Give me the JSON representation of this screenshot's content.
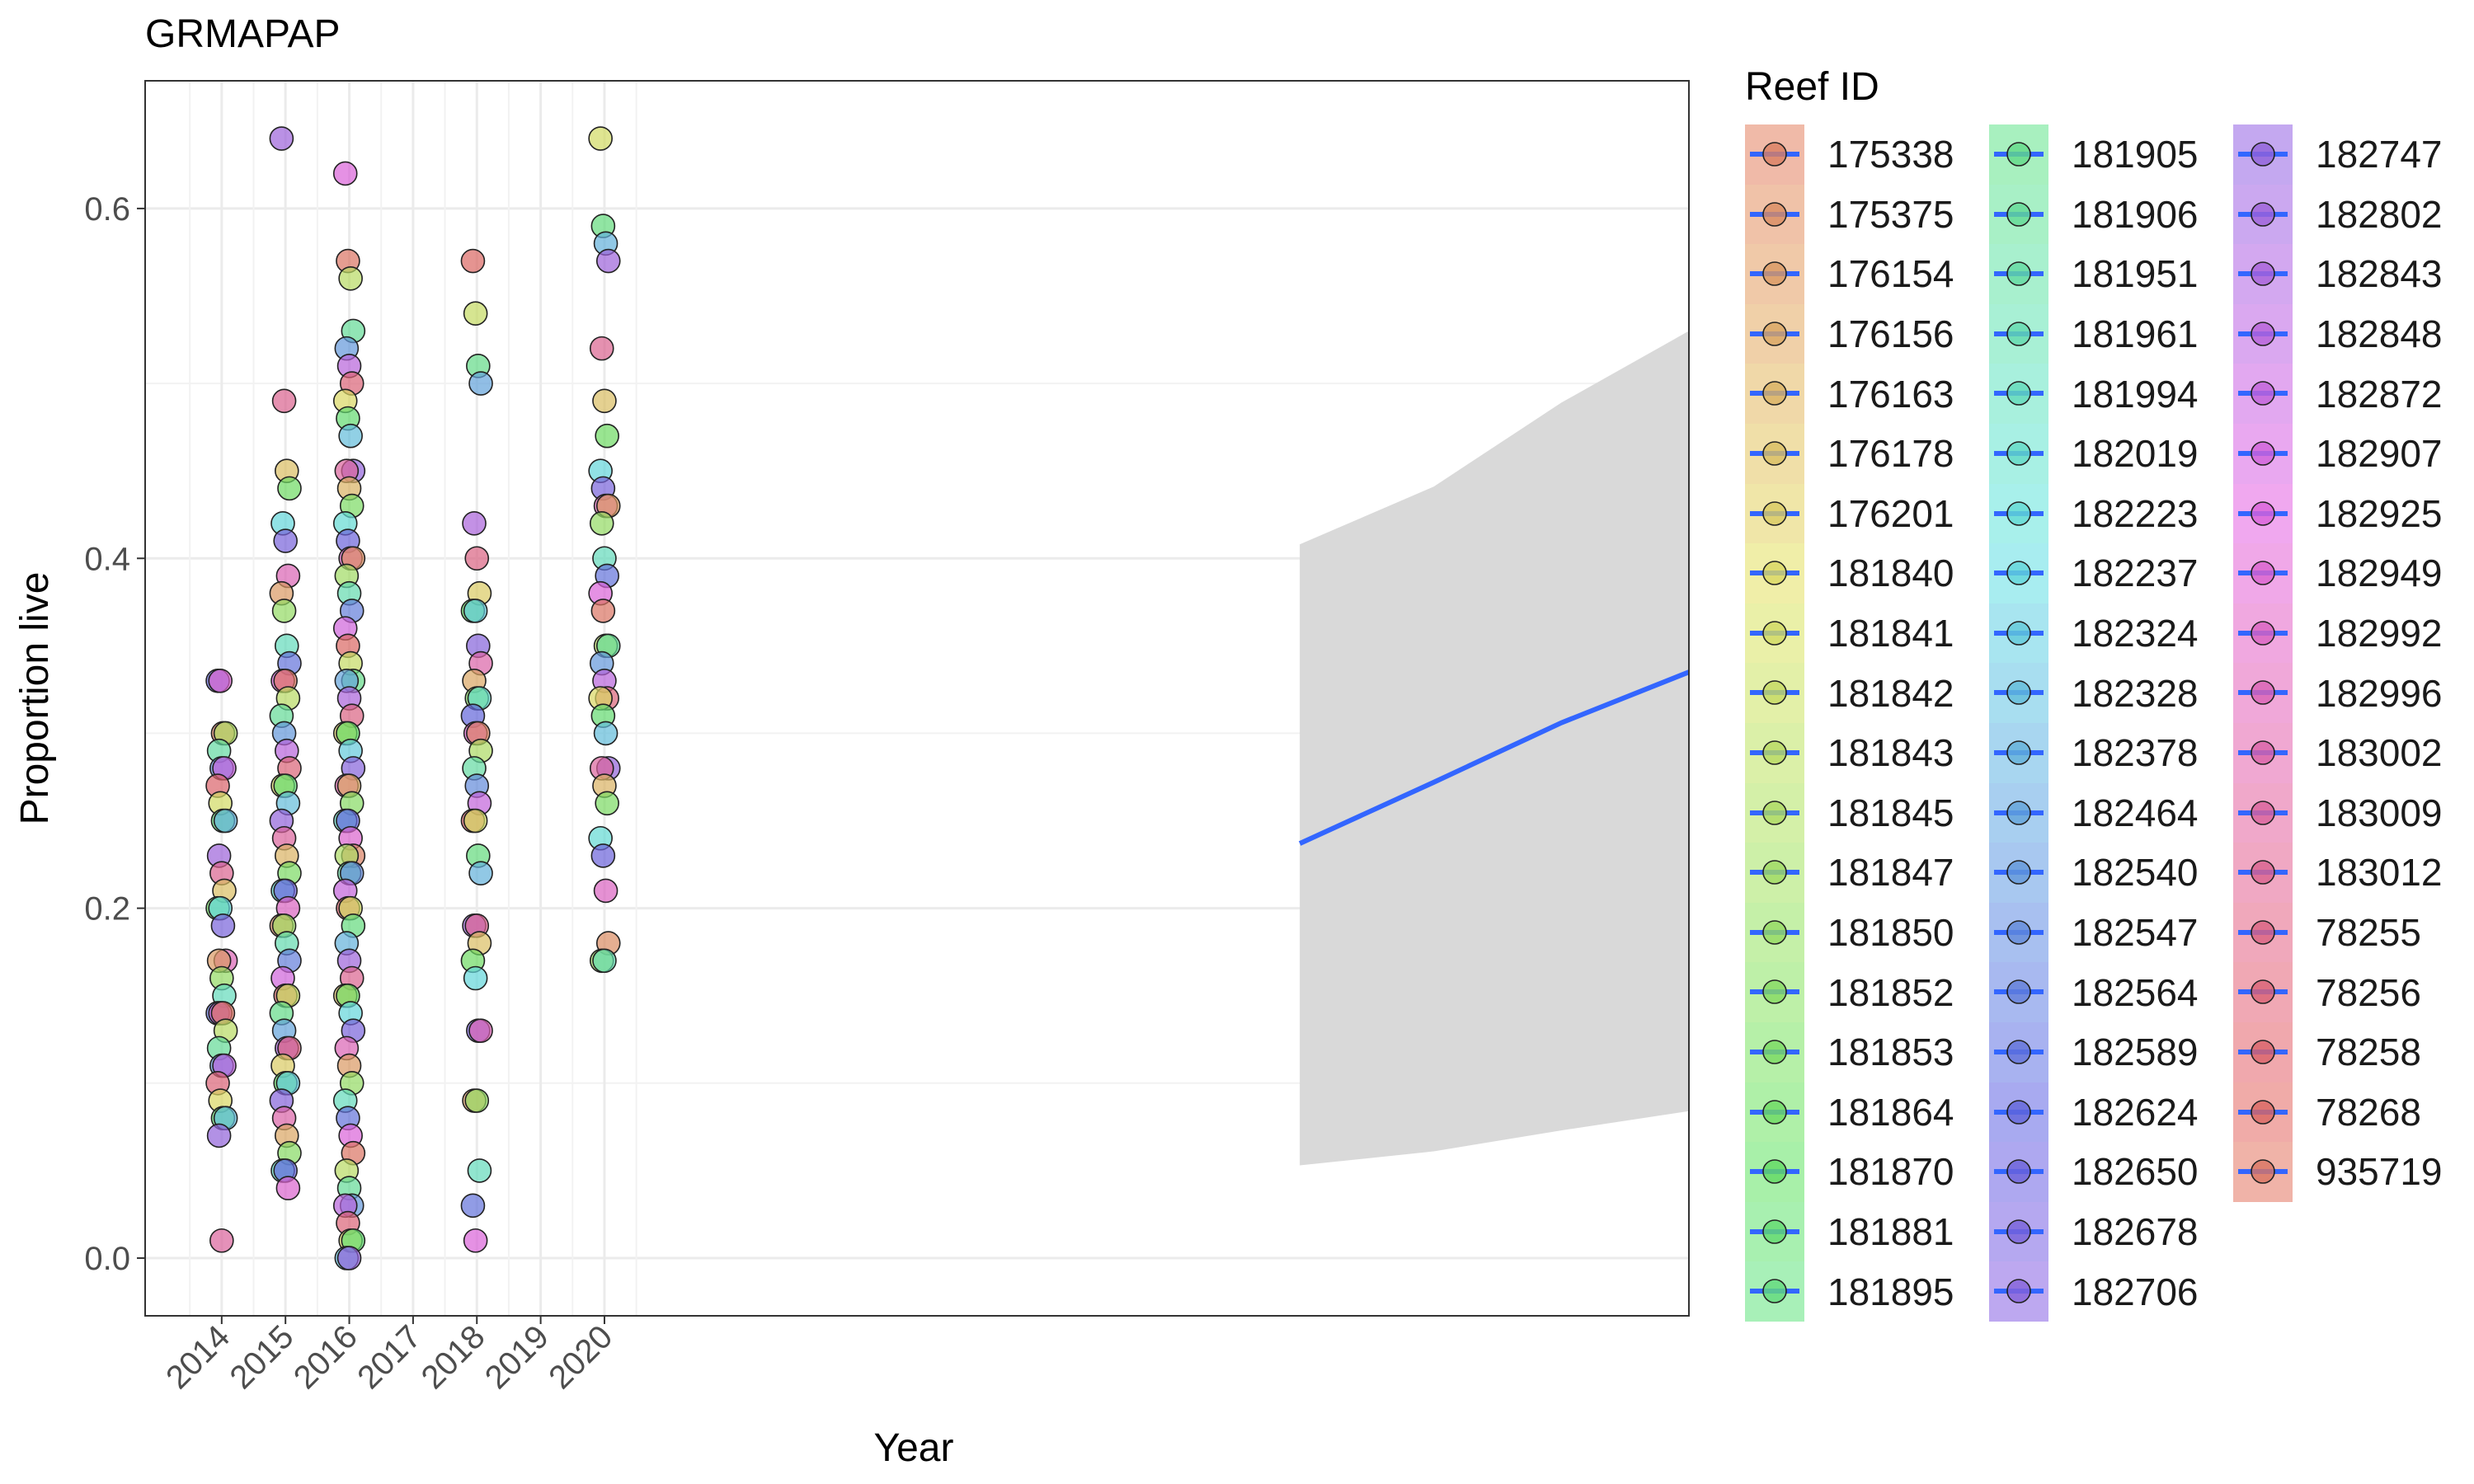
{
  "chart_data": {
    "type": "scatter",
    "title": "GRMAPAP",
    "xlabel": "Year",
    "ylabel": "Proportion live",
    "x_ticks": [
      "2014",
      "2015",
      "2016",
      "2017",
      "2018",
      "2019",
      "2020"
    ],
    "y_ticks": [
      "0.0",
      "0.2",
      "0.4",
      "0.6"
    ],
    "ylim": [
      -0.033,
      0.673
    ],
    "xlim": [
      2012.8,
      2037.0
    ],
    "grid": true,
    "legend_title": "Reef ID",
    "legend_position": "right",
    "reef_ids": [
      "175338",
      "175375",
      "176154",
      "176156",
      "176163",
      "176178",
      "176201",
      "181840",
      "181841",
      "181842",
      "181843",
      "181845",
      "181847",
      "181850",
      "181852",
      "181853",
      "181864",
      "181870",
      "181881",
      "181895",
      "181905",
      "181906",
      "181951",
      "181961",
      "181994",
      "182019",
      "182223",
      "182237",
      "182324",
      "182328",
      "182378",
      "182464",
      "182540",
      "182547",
      "182564",
      "182589",
      "182624",
      "182650",
      "182678",
      "182706",
      "182747",
      "182802",
      "182843",
      "182848",
      "182872",
      "182907",
      "182925",
      "182949",
      "182992",
      "182996",
      "183002",
      "183009",
      "183012",
      "78255",
      "78256",
      "78258",
      "78268",
      "935719"
    ],
    "points": {
      "2014": [
        0.33,
        0.33,
        0.3,
        0.3,
        0.29,
        0.28,
        0.28,
        0.27,
        0.26,
        0.25,
        0.25,
        0.23,
        0.22,
        0.21,
        0.2,
        0.2,
        0.19,
        0.17,
        0.17,
        0.16,
        0.15,
        0.14,
        0.14,
        0.14,
        0.13,
        0.12,
        0.11,
        0.11,
        0.1,
        0.09,
        0.08,
        0.08,
        0.07,
        0.01
      ],
      "2015": [
        0.64,
        0.49,
        0.45,
        0.44,
        0.42,
        0.41,
        0.39,
        0.38,
        0.37,
        0.35,
        0.34,
        0.33,
        0.33,
        0.32,
        0.31,
        0.3,
        0.29,
        0.28,
        0.27,
        0.27,
        0.26,
        0.25,
        0.24,
        0.23,
        0.22,
        0.21,
        0.21,
        0.2,
        0.19,
        0.19,
        0.18,
        0.17,
        0.16,
        0.15,
        0.15,
        0.14,
        0.13,
        0.12,
        0.12,
        0.11,
        0.1,
        0.1,
        0.09,
        0.08,
        0.07,
        0.06,
        0.05,
        0.05,
        0.04
      ],
      "2016": [
        0.62,
        0.57,
        0.56,
        0.53,
        0.52,
        0.51,
        0.5,
        0.49,
        0.48,
        0.47,
        0.45,
        0.45,
        0.44,
        0.43,
        0.42,
        0.41,
        0.4,
        0.4,
        0.39,
        0.38,
        0.37,
        0.36,
        0.35,
        0.34,
        0.33,
        0.33,
        0.32,
        0.31,
        0.3,
        0.3,
        0.29,
        0.28,
        0.27,
        0.27,
        0.26,
        0.25,
        0.25,
        0.24,
        0.23,
        0.23,
        0.22,
        0.22,
        0.21,
        0.2,
        0.2,
        0.19,
        0.18,
        0.17,
        0.16,
        0.15,
        0.15,
        0.14,
        0.13,
        0.12,
        0.11,
        0.1,
        0.09,
        0.08,
        0.07,
        0.06,
        0.05,
        0.04,
        0.03,
        0.03,
        0.02,
        0.01,
        0.01,
        0.0,
        0.0
      ],
      "2018": [
        0.57,
        0.54,
        0.51,
        0.5,
        0.42,
        0.4,
        0.38,
        0.37,
        0.37,
        0.35,
        0.34,
        0.33,
        0.32,
        0.32,
        0.31,
        0.3,
        0.3,
        0.29,
        0.28,
        0.27,
        0.26,
        0.25,
        0.25,
        0.23,
        0.22,
        0.19,
        0.19,
        0.18,
        0.17,
        0.16,
        0.13,
        0.13,
        0.09,
        0.09,
        0.05,
        0.03,
        0.01
      ],
      "2020": [
        0.64,
        0.59,
        0.58,
        0.57,
        0.52,
        0.49,
        0.47,
        0.45,
        0.44,
        0.43,
        0.43,
        0.42,
        0.4,
        0.39,
        0.38,
        0.37,
        0.35,
        0.35,
        0.34,
        0.33,
        0.32,
        0.32,
        0.31,
        0.3,
        0.28,
        0.28,
        0.27,
        0.26,
        0.24,
        0.23,
        0.21,
        0.18,
        0.17,
        0.17
      ]
    },
    "trend": {
      "x": [
        2030.9,
        2033.0,
        2035.0,
        2037.0
      ],
      "y": [
        0.237,
        0.272,
        0.306,
        0.335
      ],
      "ymin": [
        0.053,
        0.061,
        0.073,
        0.084
      ],
      "ymax": [
        0.408,
        0.441,
        0.489,
        0.53
      ],
      "color": "#3366FF",
      "ribbon_color": "#D9D9D9"
    }
  }
}
